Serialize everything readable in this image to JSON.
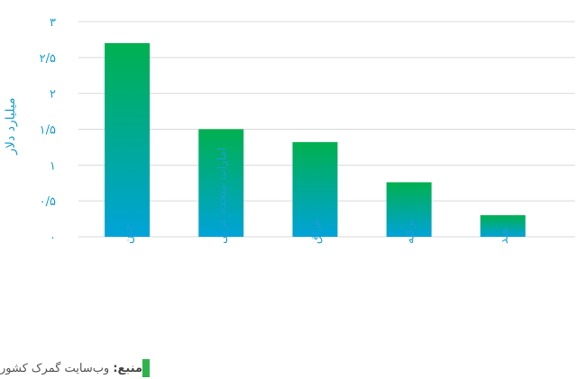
{
  "chart_data": {
    "type": "bar",
    "categories": [
      "چین",
      "امارات متحده عربی",
      "عراق",
      "ترکیه",
      "هند"
    ],
    "values": [
      2.7,
      1.5,
      1.32,
      0.76,
      0.3
    ],
    "ylabel": "میلیارد دلار",
    "ylim": [
      0,
      3
    ],
    "yticks": [
      0,
      0.5,
      1,
      1.5,
      2,
      2.5,
      3
    ],
    "ytick_labels": [
      "۰",
      "۰/۵",
      "۱",
      "۱/۵",
      "۲",
      "۲/۵",
      "۳"
    ],
    "grid": true,
    "legend": "none"
  },
  "source": {
    "label": "منبع:",
    "text": "وب‌سایت گمرک کشور"
  },
  "colors": {
    "bar_top": "#00b04f",
    "bar_bottom": "#00a3d9",
    "gridline": "#d9d9d9",
    "text": "#1a9fd4",
    "source_swatch": "#2db34a"
  }
}
